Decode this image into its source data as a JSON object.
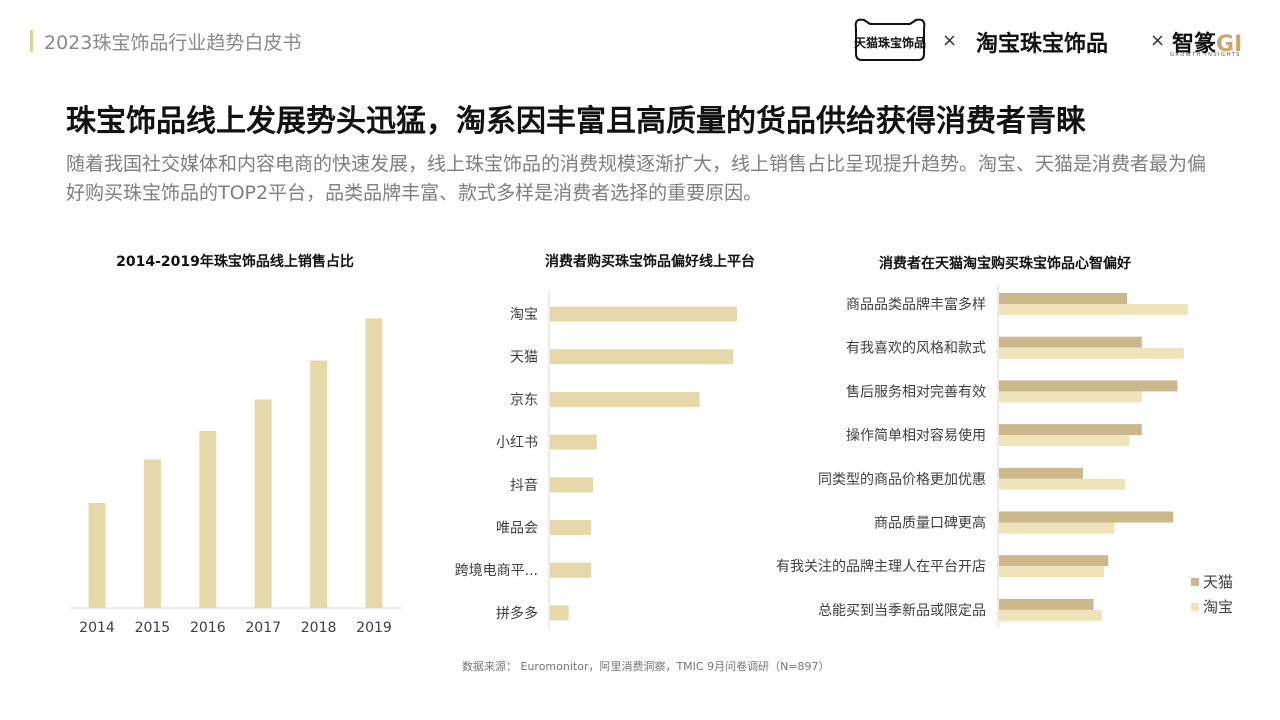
{
  "header": {
    "report_title": "2023珠宝饰品行业趋势白皮书",
    "logo_tmall": "天猫珠宝饰品",
    "separator": "×",
    "logo_taobao": "淘宝珠宝饰品",
    "logo_gi_text": "智篆",
    "logo_gi_letters": "GI",
    "logo_gi_sub": "GROWTH INSIGHTS"
  },
  "headline": "珠宝饰品线上发展势头迅猛，淘系因丰富且高质量的货品供给获得消费者青睐",
  "subtext": "随着我国社交媒体和内容电商的快速发展，线上珠宝饰品的消费规模逐渐扩大，线上销售占比呈现提升趋势。淘宝、天猫是消费者最为偏好购买珠宝饰品的TOP2平台，品类品牌丰富、款式多样是消费者选择的重要原因。",
  "source": "数据来源： Euromonitor，阿里消费洞察，TMIC 9月问卷调研（N=897）",
  "colors": {
    "tan": "#e5d9a9",
    "tmall": "#cbb98c",
    "taobao": "#efe4b9",
    "accent": "#e2cf94"
  },
  "chart_data": [
    {
      "type": "bar",
      "title": "2014-2019年珠宝饰品线上销售占比",
      "categories": [
        "2014",
        "2015",
        "2016",
        "2017",
        "2018",
        "2019"
      ],
      "values": [
        7.0,
        9.9,
        11.8,
        13.9,
        16.5,
        19.3
      ],
      "ylim": [
        0,
        20
      ]
    },
    {
      "type": "bar",
      "orientation": "horizontal",
      "title": "消费者购买珠宝饰品偏好线上平台",
      "categories": [
        "淘宝",
        "天猫",
        "京东",
        "小红书",
        "抖音",
        "唯品会",
        "跨境电商平...",
        "拼多多"
      ],
      "values": [
        100,
        98,
        80,
        25,
        23,
        22,
        22,
        10
      ]
    },
    {
      "type": "bar",
      "orientation": "horizontal",
      "title": "消费者在天猫淘宝购买珠宝饰品心智偏好",
      "categories": [
        "商品品类品牌丰富多样",
        "有我喜欢的风格和款式",
        "售后服务相对完善有效",
        "操作简单相对容易使用",
        "同类型的商品价格更加优惠",
        "商品质量口碑更高",
        "有我关注的品牌主理人在平台开店",
        "总能买到当季新品或限定品"
      ],
      "legend_position": "bottom-right",
      "series": [
        {
          "name": "天猫",
          "values": [
            61,
            68,
            85,
            68,
            40,
            83,
            52,
            45
          ]
        },
        {
          "name": "淘宝",
          "values": [
            90,
            88,
            68,
            62,
            60,
            55,
            50,
            49
          ]
        }
      ]
    }
  ]
}
